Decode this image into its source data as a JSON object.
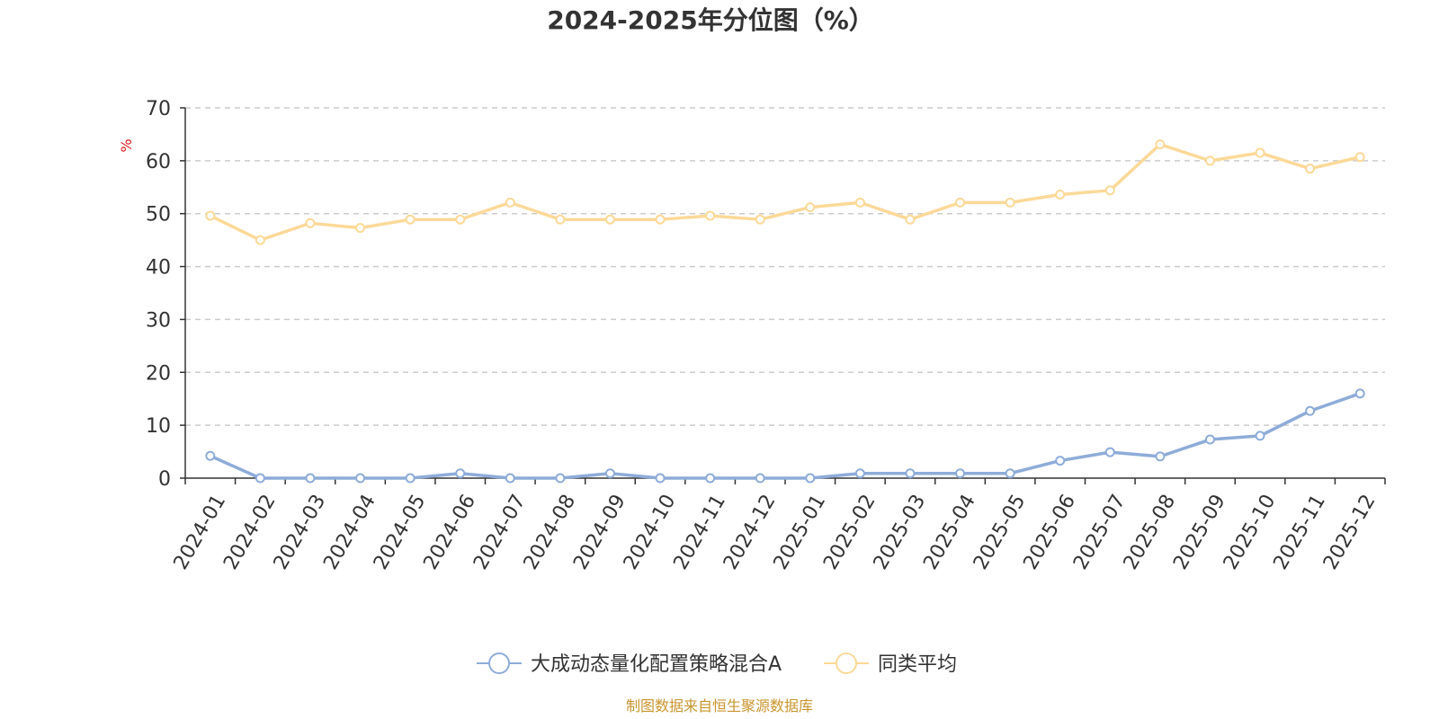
{
  "chart_data": {
    "type": "line",
    "title": "2024-2025年分位图（%）",
    "ylabel": "%",
    "xlabel": "",
    "ylim": [
      0,
      70
    ],
    "yticks": [
      0,
      10,
      20,
      30,
      40,
      50,
      60,
      70
    ],
    "grid": true,
    "legend_position": "bottom",
    "categories": [
      "2024-01",
      "2024-02",
      "2024-03",
      "2024-04",
      "2024-05",
      "2024-06",
      "2024-07",
      "2024-08",
      "2024-09",
      "2024-10",
      "2024-11",
      "2024-12",
      "2025-01",
      "2025-02",
      "2025-03",
      "2025-04",
      "2025-05",
      "2025-06",
      "2025-07",
      "2025-08",
      "2025-09",
      "2025-10",
      "2025-11",
      "2025-12"
    ],
    "series": [
      {
        "name": "大成动态量化配置策略混合A",
        "color": "#8eacd9",
        "values": [
          4.2,
          0,
          0,
          0,
          0,
          0.9,
          0,
          0,
          0.9,
          0,
          0,
          0,
          0,
          0.9,
          0.9,
          0.9,
          0.9,
          3.3,
          4.9,
          4.1,
          7.3,
          8.0,
          12.7,
          16.0
        ]
      },
      {
        "name": "同类平均",
        "color": "#fcd998",
        "values": [
          49.6,
          45.0,
          48.2,
          47.3,
          48.9,
          48.9,
          52.1,
          48.9,
          48.9,
          48.9,
          49.6,
          48.9,
          51.2,
          52.1,
          48.9,
          52.1,
          52.1,
          53.6,
          54.4,
          63.1,
          60.0,
          61.5,
          58.5,
          60.7
        ]
      }
    ]
  },
  "colors": {
    "unit": "#e31b1b",
    "source": "#c8952e",
    "axis": "#333333",
    "grid": "#cccccc"
  },
  "source_text": "制图数据来自恒生聚源数据库"
}
